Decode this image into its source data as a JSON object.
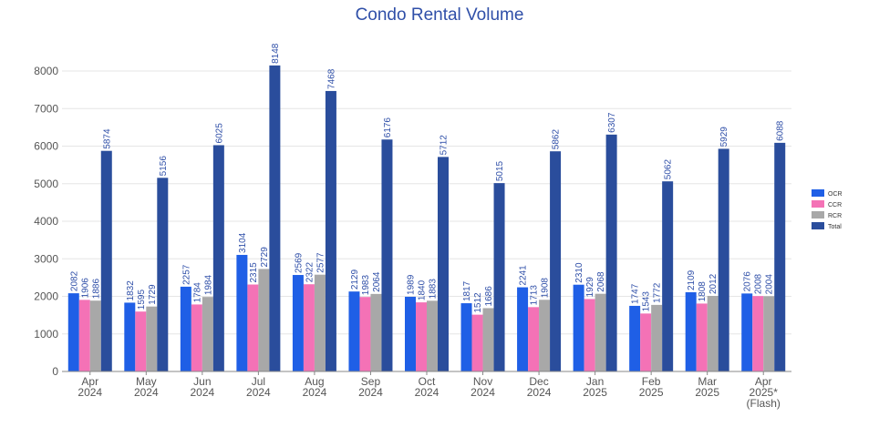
{
  "chart_data": {
    "type": "bar",
    "title": "Condo Rental Volume",
    "xlabel": "",
    "ylabel": "",
    "ylim": [
      0,
      8000
    ],
    "yticks": [
      0,
      1000,
      2000,
      3000,
      4000,
      5000,
      6000,
      7000,
      8000
    ],
    "grid": true,
    "legend_position": "right",
    "categories": [
      [
        "Apr",
        "2024"
      ],
      [
        "May",
        "2024"
      ],
      [
        "Jun",
        "2024"
      ],
      [
        "Jul",
        "2024"
      ],
      [
        "Aug",
        "2024"
      ],
      [
        "Sep",
        "2024"
      ],
      [
        "Oct",
        "2024"
      ],
      [
        "Nov",
        "2024"
      ],
      [
        "Dec",
        "2024"
      ],
      [
        "Jan",
        "2025"
      ],
      [
        "Feb",
        "2025"
      ],
      [
        "Mar",
        "2025"
      ],
      [
        "Apr",
        "2025*",
        "(Flash)"
      ]
    ],
    "series": [
      {
        "name": "OCR",
        "color": "#1f5fe6",
        "values": [
          2082,
          1832,
          2257,
          3104,
          2569,
          2129,
          1989,
          1817,
          2241,
          2310,
          1747,
          2109,
          2076
        ]
      },
      {
        "name": "CCR",
        "color": "#f472b6",
        "values": [
          1906,
          1595,
          1784,
          2315,
          2322,
          1983,
          1840,
          1512,
          1713,
          1929,
          1543,
          1808,
          2008
        ]
      },
      {
        "name": "RCR",
        "color": "#a8a8a8",
        "values": [
          1886,
          1729,
          1984,
          2729,
          2577,
          2064,
          1883,
          1686,
          1908,
          2068,
          1772,
          2012,
          2004
        ]
      },
      {
        "name": "Total",
        "color": "#2a4d9c",
        "values": [
          5874,
          5156,
          6025,
          8148,
          7468,
          6176,
          5712,
          5015,
          5862,
          6307,
          5062,
          5929,
          6088
        ]
      }
    ]
  }
}
